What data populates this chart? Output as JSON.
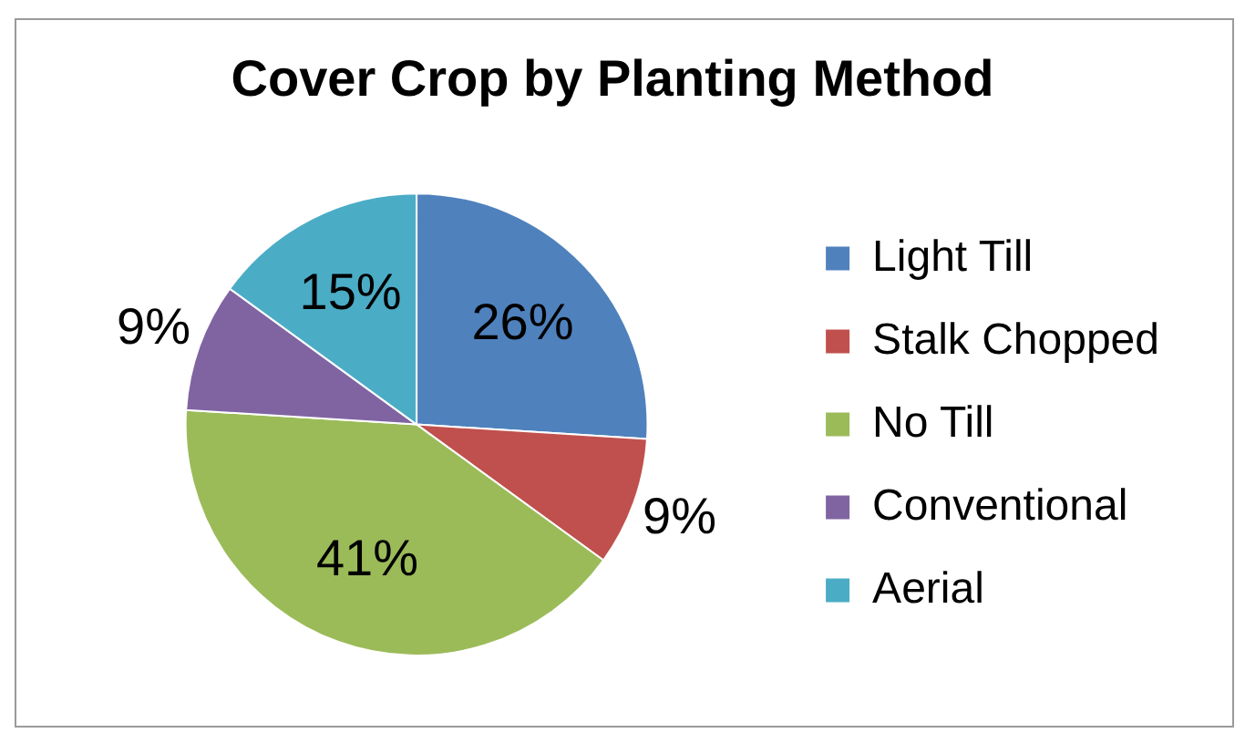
{
  "chart_data": {
    "type": "pie",
    "title": "Cover Crop by Planting Method",
    "categories": [
      "Light Till",
      "Stalk Chopped",
      "No Till",
      "Conventional",
      "Aerial"
    ],
    "values": [
      26,
      9,
      41,
      9,
      15
    ],
    "colors": [
      "#4f81bd",
      "#c0504d",
      "#9bbb59",
      "#8064a2",
      "#4bacc6"
    ],
    "value_labels": [
      "26%",
      "9%",
      "41%",
      "9%",
      "15%"
    ],
    "legend": "right"
  }
}
